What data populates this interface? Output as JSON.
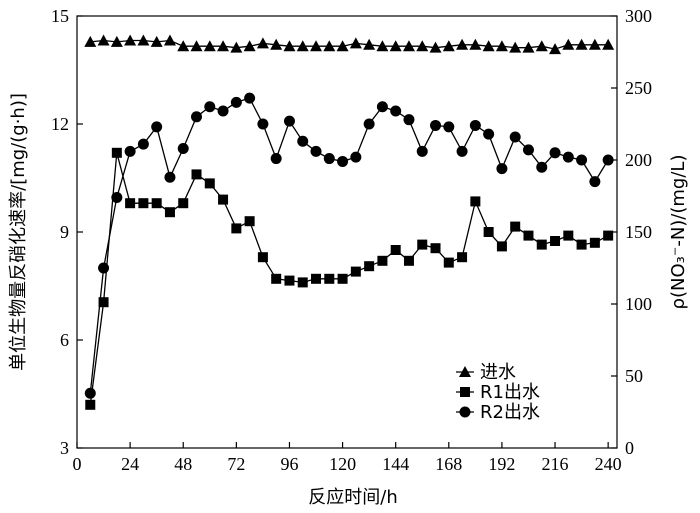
{
  "chart_data": {
    "type": "line",
    "xlabel": "反应时间/h",
    "ylabel_left": "单位生物量反硝化速率/[mg/(g·h)]",
    "ylabel_right": "ρ(NO₃⁻-N)/(mg/L)",
    "xlim": [
      0,
      244
    ],
    "ylim_left": [
      3,
      15
    ],
    "ylim_right": [
      0,
      300
    ],
    "x_ticks": [
      0,
      24,
      48,
      72,
      96,
      120,
      144,
      168,
      192,
      216,
      240
    ],
    "y_left_ticks": [
      3,
      6,
      9,
      12,
      15
    ],
    "y_right_ticks": [
      0,
      50,
      100,
      150,
      200,
      250,
      300
    ],
    "grid": false,
    "legend_position": "bottom-right",
    "series": [
      {
        "name": "进水",
        "marker": "triangle",
        "axis": "right",
        "x": [
          6,
          12,
          18,
          24,
          30,
          36,
          42,
          48,
          54,
          60,
          66,
          72,
          78,
          84,
          90,
          96,
          102,
          108,
          114,
          120,
          126,
          132,
          138,
          144,
          150,
          156,
          162,
          168,
          174,
          180,
          186,
          192,
          198,
          204,
          210,
          216,
          222,
          228,
          234,
          240
        ],
        "y": [
          282,
          283,
          282,
          283,
          283,
          282,
          283,
          279,
          279,
          279,
          279,
          278,
          279,
          281,
          280,
          279,
          279,
          279,
          279,
          279,
          281,
          280,
          279,
          279,
          279,
          279,
          278,
          279,
          280,
          280,
          279,
          279,
          278,
          278,
          279,
          277,
          280,
          280,
          280,
          280
        ]
      },
      {
        "name": "R1出水",
        "marker": "square",
        "axis": "left",
        "x": [
          6,
          12,
          18,
          24,
          30,
          36,
          42,
          48,
          54,
          60,
          66,
          72,
          78,
          84,
          90,
          96,
          102,
          108,
          114,
          120,
          126,
          132,
          138,
          144,
          150,
          156,
          162,
          168,
          174,
          180,
          186,
          192,
          198,
          204,
          210,
          216,
          222,
          228,
          234,
          240
        ],
        "y": [
          4.2,
          7.05,
          11.2,
          9.8,
          9.8,
          9.8,
          9.55,
          9.8,
          10.6,
          10.35,
          9.9,
          9.1,
          9.3,
          8.3,
          7.7,
          7.65,
          7.6,
          7.7,
          7.7,
          7.7,
          7.9,
          8.05,
          8.2,
          8.5,
          8.2,
          8.65,
          8.55,
          8.15,
          8.3,
          9.85,
          9.0,
          8.6,
          9.15,
          8.9,
          8.65,
          8.75,
          8.9,
          8.65,
          8.7,
          8.9
        ]
      },
      {
        "name": "R2出水",
        "marker": "circle",
        "axis": "right",
        "x": [
          6,
          12,
          18,
          24,
          30,
          36,
          42,
          48,
          54,
          60,
          66,
          72,
          78,
          84,
          90,
          96,
          102,
          108,
          114,
          120,
          126,
          132,
          138,
          144,
          150,
          156,
          162,
          168,
          174,
          180,
          186,
          192,
          198,
          204,
          210,
          216,
          222,
          228,
          234,
          240
        ],
        "y": [
          38,
          125,
          174,
          206,
          211,
          223,
          188,
          208,
          230,
          237,
          234,
          240,
          243,
          225,
          201,
          227,
          213,
          206,
          201,
          199,
          202,
          225,
          237,
          234,
          228,
          206,
          224,
          223,
          206,
          224,
          218,
          194,
          216,
          207,
          195,
          205,
          202,
          200,
          185,
          200
        ]
      }
    ]
  }
}
